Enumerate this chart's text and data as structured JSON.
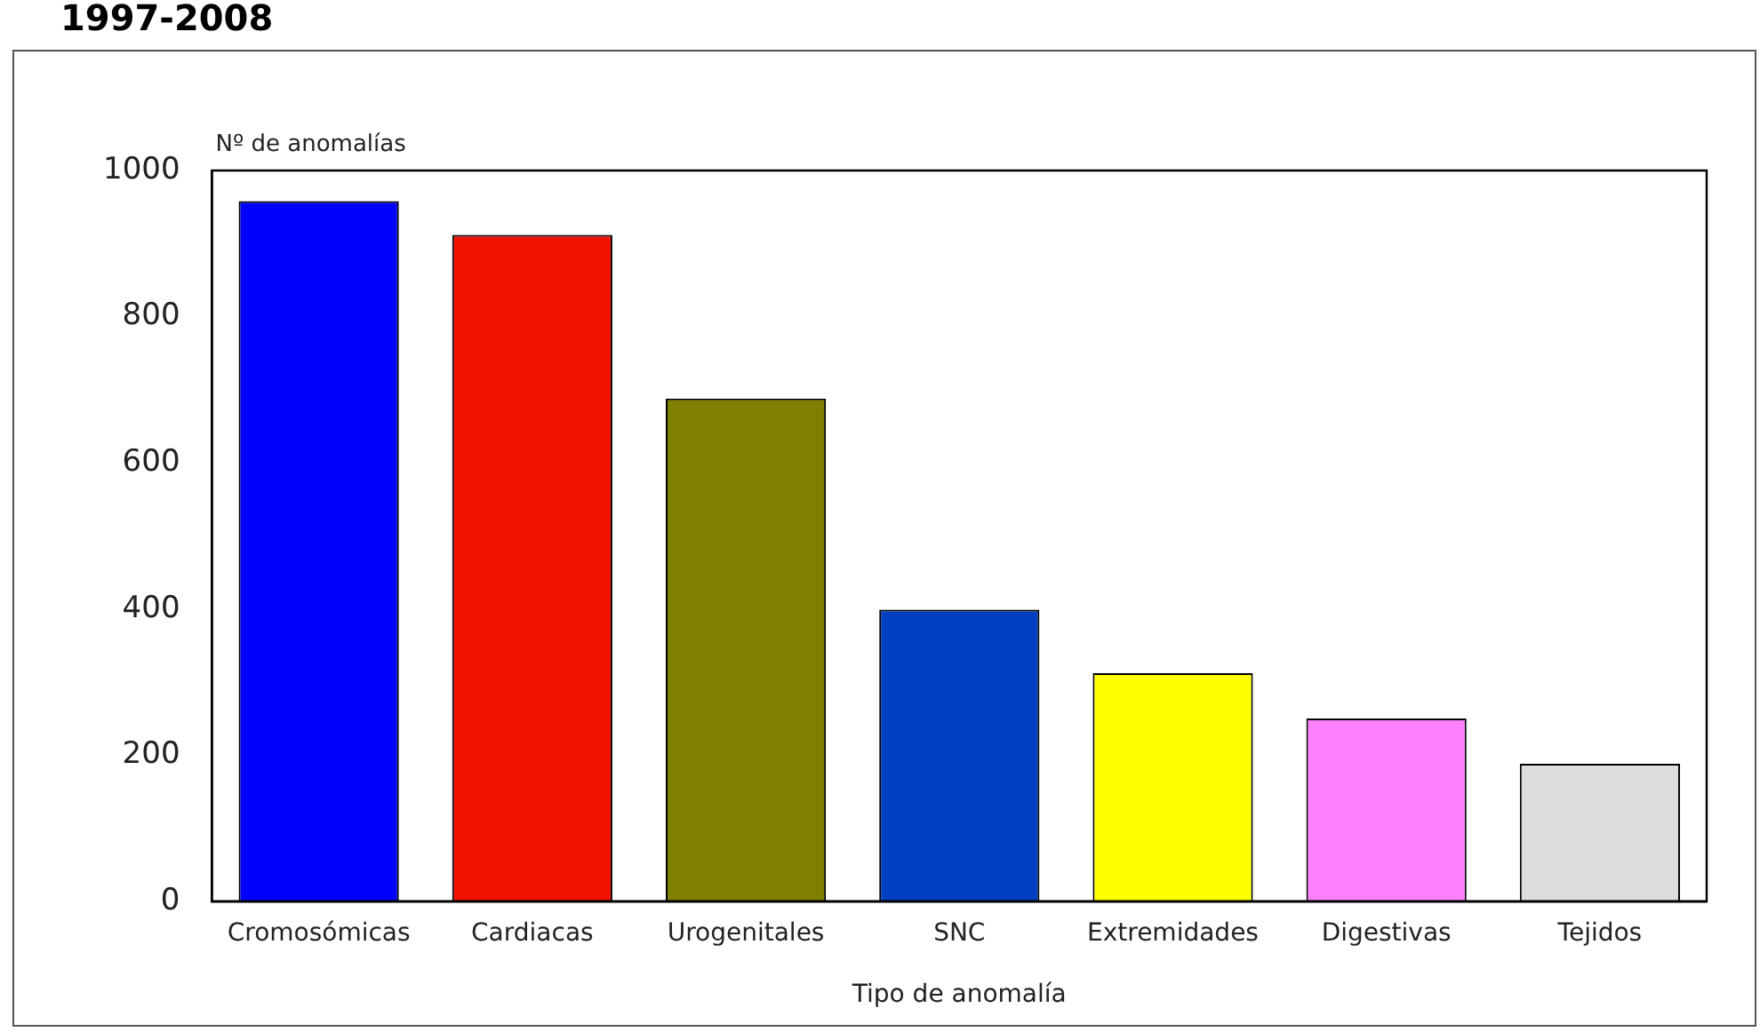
{
  "chart_data": {
    "type": "bar",
    "title": "1997-2008",
    "ylabel": "Nº de anomalías",
    "xlabel": "Tipo de anomalía",
    "categories": [
      "Cromosómicas",
      "Cardiacas",
      "Urogenitales",
      "SNC",
      "Extremidades",
      "Digestivas",
      "Tejidos"
    ],
    "values": [
      958,
      912,
      688,
      399,
      312,
      250,
      188
    ],
    "colors": [
      "#0000ff",
      "#f21100",
      "#808000",
      "#0040c0",
      "#ffff00",
      "#ff80ff",
      "#dddddd"
    ],
    "ylim": [
      0,
      1000
    ],
    "yticks": [
      0,
      200,
      400,
      600,
      800,
      1000
    ],
    "grid": false,
    "legend": false
  }
}
